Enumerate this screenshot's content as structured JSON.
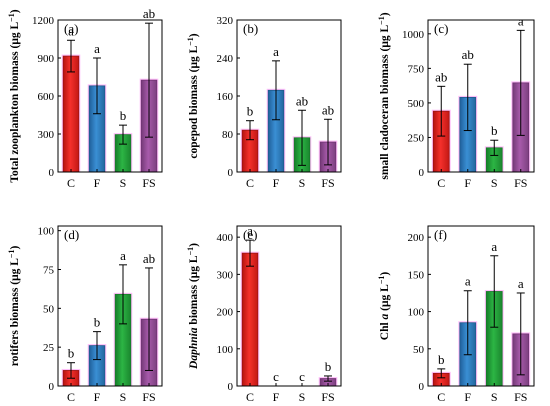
{
  "chart_data": [
    {
      "panel": "(a)",
      "type": "bar",
      "ylabel": "Total zooplankton biomass (μg L⁻¹)",
      "ylabel_parts": [
        {
          "t": "Total zooplankton biomass (μg L",
          "i": false
        },
        {
          "t": "−1",
          "sup": true
        },
        {
          "t": ")",
          "i": false
        }
      ],
      "categories": [
        "C",
        "F",
        "S",
        "FS"
      ],
      "values": [
        915,
        680,
        295,
        725
      ],
      "errors": [
        125,
        220,
        75,
        450
      ],
      "letters": [
        "a",
        "a",
        "b",
        "ab"
      ],
      "ylim": [
        0,
        1200
      ],
      "yticks": [
        0,
        300,
        600,
        900,
        1200
      ]
    },
    {
      "panel": "(b)",
      "type": "bar",
      "ylabel": "copepod biomass (μg L⁻¹)",
      "ylabel_parts": [
        {
          "t": "copepod biomass (μg L",
          "i": false
        },
        {
          "t": "−1",
          "sup": true
        },
        {
          "t": ")",
          "i": false
        }
      ],
      "categories": [
        "C",
        "F",
        "S",
        "FS"
      ],
      "values": [
        88,
        172,
        72,
        63
      ],
      "errors": [
        20,
        62,
        58,
        48
      ],
      "letters": [
        "b",
        "a",
        "ab",
        "ab"
      ],
      "ylim": [
        0,
        320
      ],
      "yticks": [
        0,
        80,
        160,
        240,
        320
      ]
    },
    {
      "panel": "(c)",
      "type": "bar",
      "ylabel": "small cladoceran biomass (μg L⁻¹)",
      "ylabel_parts": [
        {
          "t": "small cladoceran biomass (μg L",
          "i": false
        },
        {
          "t": "−1",
          "sup": true
        },
        {
          "t": ")",
          "i": false
        }
      ],
      "categories": [
        "C",
        "F",
        "S",
        "FS"
      ],
      "values": [
        440,
        540,
        175,
        645
      ],
      "errors": [
        180,
        240,
        55,
        380
      ],
      "letters": [
        "ab",
        "ab",
        "b",
        "a"
      ],
      "ylim": [
        0,
        1100
      ],
      "yticks": [
        0,
        250,
        500,
        750,
        1000
      ]
    },
    {
      "panel": "(d)",
      "type": "bar",
      "ylabel": "rotifers biomass (μg L⁻¹)",
      "ylabel_parts": [
        {
          "t": "rotifers biomass (μg L",
          "i": false
        },
        {
          "t": "−1",
          "sup": true
        },
        {
          "t": ")",
          "i": false
        }
      ],
      "categories": [
        "C",
        "F",
        "S",
        "FS"
      ],
      "values": [
        10,
        26,
        59,
        43
      ],
      "errors": [
        5,
        9,
        19,
        33
      ],
      "letters": [
        "b",
        "b",
        "a",
        "ab"
      ],
      "ylim": [
        0,
        103
      ],
      "yticks": [
        0,
        25,
        50,
        75,
        100
      ]
    },
    {
      "panel": "(e)",
      "type": "bar",
      "ylabel": "Daphnia biomass (μg L⁻¹)",
      "ylabel_parts": [
        {
          "t": "Daphnia",
          "i": true
        },
        {
          "t": " biomass (μg L",
          "i": false
        },
        {
          "t": "−1",
          "sup": true
        },
        {
          "t": ")",
          "i": false
        }
      ],
      "categories": [
        "C",
        "F",
        "S",
        "FS"
      ],
      "values": [
        357,
        0,
        0,
        20
      ],
      "errors": [
        35,
        0,
        0,
        7
      ],
      "letters": [
        "a",
        "c",
        "c",
        "b"
      ],
      "ylim": [
        0,
        430
      ],
      "yticks": [
        0,
        100,
        200,
        300,
        400
      ]
    },
    {
      "panel": "(f)",
      "type": "bar",
      "ylabel": "Chl a (μg L⁻¹)",
      "ylabel_parts": [
        {
          "t": "Chl ",
          "i": false
        },
        {
          "t": "a",
          "i": true
        },
        {
          "t": " (μg L",
          "i": false
        },
        {
          "t": "−1",
          "sup": true
        },
        {
          "t": ")",
          "i": false
        }
      ],
      "categories": [
        "C",
        "F",
        "S",
        "FS"
      ],
      "values": [
        17,
        85,
        127,
        70
      ],
      "errors": [
        6,
        43,
        48,
        55
      ],
      "letters": [
        "b",
        "a",
        "a",
        "a"
      ],
      "ylim": [
        0,
        215
      ],
      "yticks": [
        0,
        50,
        100,
        150,
        200
      ]
    }
  ],
  "colors": {
    "bars": [
      "#e8201c",
      "#2f7fc2",
      "#24a23a",
      "#9b4f9e"
    ],
    "bar_edges": [
      "#9b1512",
      "#1f5a8c",
      "#187a2a",
      "#6f3272"
    ],
    "bars_light": [
      "#f2a29f",
      "#9ec3e6",
      "#a2dba9",
      "#d8a9da"
    ],
    "halo": "#ff44ee"
  }
}
